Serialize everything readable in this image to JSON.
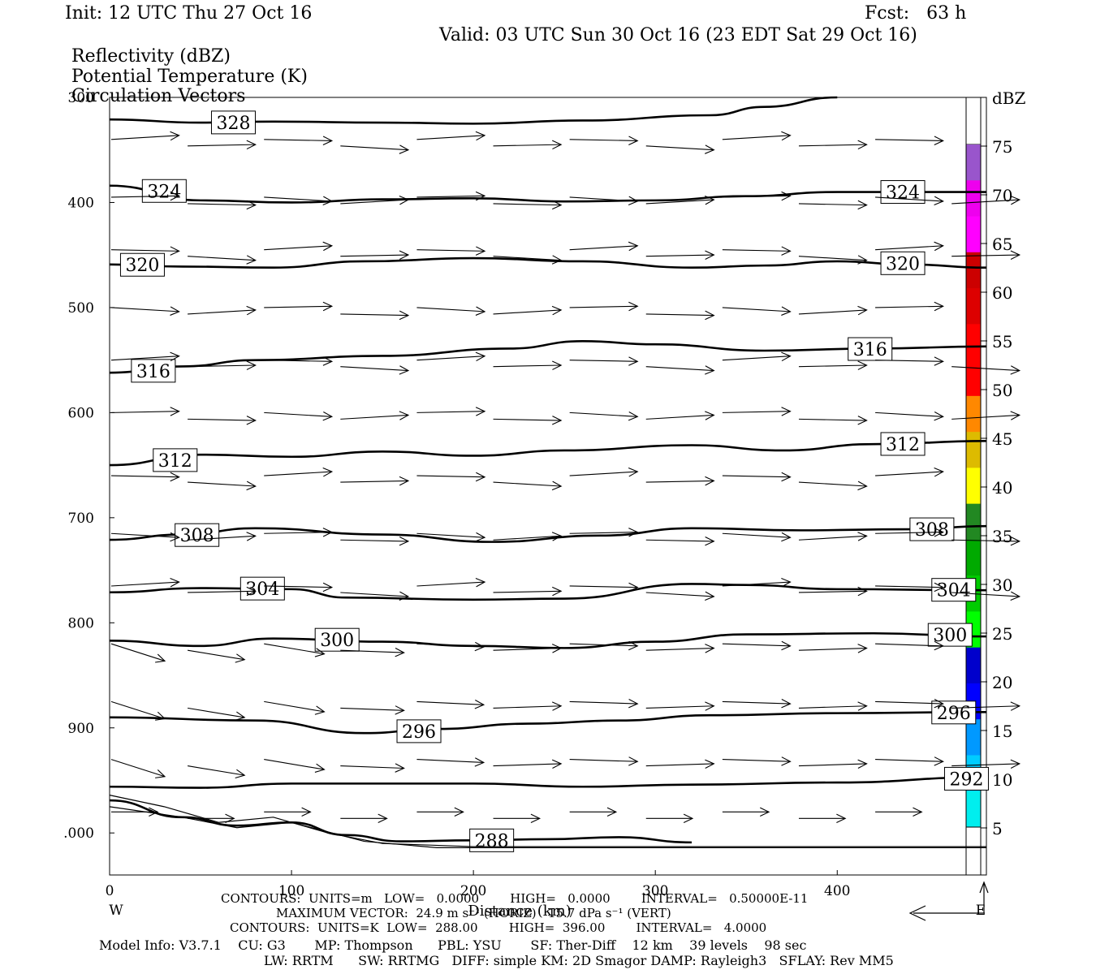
{
  "header": {
    "init": "Init: 12 UTC Thu 27 Oct 16",
    "fcst": "Fcst:   63 h",
    "valid": "Valid: 03 UTC Sun 30 Oct 16 (23 EDT Sat 29 Oct 16)",
    "fields": [
      "Reflectivity (dBZ)",
      "Potential Temperature (K)",
      "Circulation Vectors"
    ]
  },
  "footer": {
    "contours1": "CONTOURS:  UNITS=m   LOW=   0.0000        HIGH=   0.0000        INTERVAL=   0.50000E-11",
    "maxvector": "MAXIMUM VECTOR:  24.9 m s⁻¹ (HORIZ)   15.7 dPa s⁻¹ (VERT)",
    "contours2": "CONTOURS:  UNITS=K  LOW=  288.00        HIGH=  396.00        INTERVAL=   4.0000",
    "model1": "Model Info: V3.7.1    CU: G3       MP: Thompson      PBL: YSU       SF: Ther-Diff    12 km    39 levels    98 sec",
    "model2": "LW: RRTM      SW: RRTMG   DIFF: simple KM: 2D Smagor DAMP: Rayleigh3   SFLAY: Rev MM5"
  },
  "chart_data": {
    "type": "cross-section",
    "title": "",
    "xlabel": "Distance (km)",
    "ylabel": "",
    "xlim": [
      0,
      482
    ],
    "ylim": [
      300,
      1040
    ],
    "x_ticks": [
      0,
      100,
      200,
      300,
      400
    ],
    "y_ticks": [
      "300",
      "400",
      "500",
      "600",
      "700",
      "800",
      "900",
      "1000"
    ],
    "y_tick_text": [
      "300",
      "400",
      "500",
      "600",
      "700",
      "800",
      "900",
      ".000"
    ],
    "x_end_labels": {
      "left": "W",
      "right": "E"
    },
    "colorbar": {
      "unit": "dBZ",
      "labels": [
        75,
        70,
        65,
        60,
        55,
        50,
        45,
        40,
        35,
        30,
        25,
        20,
        15,
        10,
        5
      ],
      "colors": [
        "#9955cc",
        "#ee00ee",
        "#ff00ff",
        "#cc0000",
        "#dd0000",
        "#ff0000",
        "#ff0000",
        "#ff8800",
        "#ddbb00",
        "#ffff00",
        "#228822",
        "#00aa00",
        "#00cc00",
        "#00ff00",
        "#0000cc",
        "#0000ff",
        "#0099ff",
        "#00ccff",
        "#00eeee"
      ]
    },
    "theta_contours": [
      {
        "value": 328,
        "label": "328",
        "points": [
          [
            0,
            321
          ],
          [
            50,
            324
          ],
          [
            90,
            323
          ],
          [
            150,
            324
          ],
          [
            200,
            325
          ],
          [
            260,
            322
          ],
          [
            330,
            317
          ],
          [
            360,
            309
          ],
          [
            400,
            300
          ]
        ]
      },
      {
        "value": 324,
        "label": "324",
        "points": [
          [
            0,
            384
          ],
          [
            50,
            398
          ],
          [
            100,
            400
          ],
          [
            150,
            397
          ],
          [
            200,
            396
          ],
          [
            250,
            399
          ],
          [
            300,
            398
          ],
          [
            350,
            394
          ],
          [
            400,
            390
          ],
          [
            482,
            390
          ]
        ]
      },
      {
        "value": 320,
        "label": "320",
        "points": [
          [
            0,
            459
          ],
          [
            40,
            461
          ],
          [
            90,
            462
          ],
          [
            140,
            456
          ],
          [
            200,
            453
          ],
          [
            260,
            456
          ],
          [
            320,
            462
          ],
          [
            360,
            460
          ],
          [
            400,
            456
          ],
          [
            440,
            459
          ],
          [
            482,
            462
          ]
        ]
      },
      {
        "value": 316,
        "label": "316",
        "points": [
          [
            0,
            562
          ],
          [
            40,
            556
          ],
          [
            80,
            550
          ],
          [
            150,
            546
          ],
          [
            220,
            539
          ],
          [
            260,
            532
          ],
          [
            300,
            535
          ],
          [
            360,
            541
          ],
          [
            420,
            539
          ],
          [
            482,
            537
          ]
        ]
      },
      {
        "value": 312,
        "label": "312",
        "points": [
          [
            0,
            650
          ],
          [
            50,
            640
          ],
          [
            100,
            642
          ],
          [
            150,
            637
          ],
          [
            200,
            641
          ],
          [
            250,
            636
          ],
          [
            320,
            631
          ],
          [
            370,
            636
          ],
          [
            420,
            630
          ],
          [
            482,
            627
          ]
        ]
      },
      {
        "value": 308,
        "label": "308",
        "points": [
          [
            0,
            721
          ],
          [
            40,
            716
          ],
          [
            80,
            710
          ],
          [
            150,
            716
          ],
          [
            210,
            723
          ],
          [
            270,
            717
          ],
          [
            320,
            710
          ],
          [
            380,
            712
          ],
          [
            440,
            711
          ],
          [
            482,
            708
          ]
        ]
      },
      {
        "value": 304,
        "label": "304",
        "points": [
          [
            0,
            771
          ],
          [
            50,
            767
          ],
          [
            100,
            768
          ],
          [
            130,
            776
          ],
          [
            200,
            778
          ],
          [
            250,
            777
          ],
          [
            320,
            763
          ],
          [
            350,
            764
          ],
          [
            400,
            768
          ],
          [
            482,
            769
          ]
        ]
      },
      {
        "value": 300,
        "label": "300",
        "points": [
          [
            0,
            817
          ],
          [
            50,
            822
          ],
          [
            90,
            815
          ],
          [
            150,
            818
          ],
          [
            200,
            822
          ],
          [
            250,
            824
          ],
          [
            300,
            818
          ],
          [
            350,
            811
          ],
          [
            420,
            810
          ],
          [
            482,
            813
          ]
        ]
      },
      {
        "value": 296,
        "label": "296",
        "points": [
          [
            0,
            890
          ],
          [
            80,
            893
          ],
          [
            140,
            905
          ],
          [
            180,
            901
          ],
          [
            230,
            896
          ],
          [
            280,
            893
          ],
          [
            330,
            888
          ],
          [
            400,
            886
          ],
          [
            482,
            885
          ]
        ]
      },
      {
        "value": 292,
        "label": "292",
        "points": [
          [
            0,
            956
          ],
          [
            50,
            957
          ],
          [
            100,
            953
          ],
          [
            200,
            953
          ],
          [
            260,
            956
          ],
          [
            320,
            954
          ],
          [
            400,
            952
          ],
          [
            482,
            947
          ]
        ]
      },
      {
        "value": 288,
        "label": "288",
        "points": [
          [
            0,
            969
          ],
          [
            40,
            985
          ],
          [
            70,
            993
          ],
          [
            100,
            990
          ],
          [
            130,
            1002
          ],
          [
            160,
            1008
          ],
          [
            200,
            1007
          ],
          [
            240,
            1006
          ],
          [
            280,
            1004
          ],
          [
            320,
            1009
          ]
        ]
      }
    ],
    "vectors_note": "circulation vectors mostly westerly (left to right), descending near surface on west side"
  }
}
